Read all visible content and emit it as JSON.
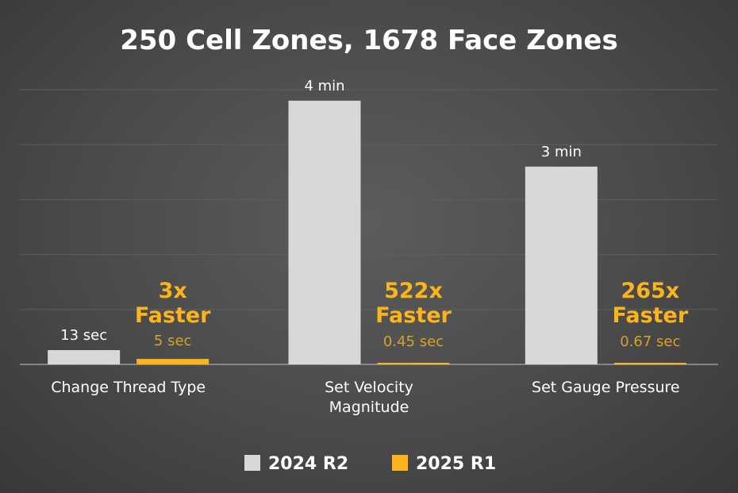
{
  "chart_data": {
    "type": "bar",
    "title": "250 Cell Zones, 1678 Face Zones",
    "xlabel": "",
    "ylabel": "",
    "unit": "seconds",
    "ylim": [
      0,
      250
    ],
    "grid": true,
    "grid_step": 50,
    "legend_position": "bottom",
    "categories": [
      "Change Thread Type",
      "Set Velocity\nMagnitude",
      "Set Gauge Pressure"
    ],
    "series": [
      {
        "name": "2024 R2",
        "color": "#d9d8d6",
        "values": [
          13,
          240,
          180
        ],
        "labels": [
          "13 sec",
          "4 min",
          "3 min"
        ]
      },
      {
        "name": "2025 R1",
        "color": "#fbb41a",
        "values": [
          5,
          0.45,
          0.67
        ],
        "labels": [
          "5 sec",
          "0.45 sec",
          "0.67 sec"
        ]
      }
    ],
    "annotations": [
      {
        "line1": "3x",
        "line2": "Faster"
      },
      {
        "line1": "522x",
        "line2": "Faster"
      },
      {
        "line1": "265x",
        "line2": "Faster"
      }
    ],
    "colors": {
      "value_label_new": "#d9a02a",
      "annotation": "#fbb41a",
      "text": "#ffffff",
      "grid": "#5e5e5e",
      "axis": "#9a9a9a"
    }
  }
}
